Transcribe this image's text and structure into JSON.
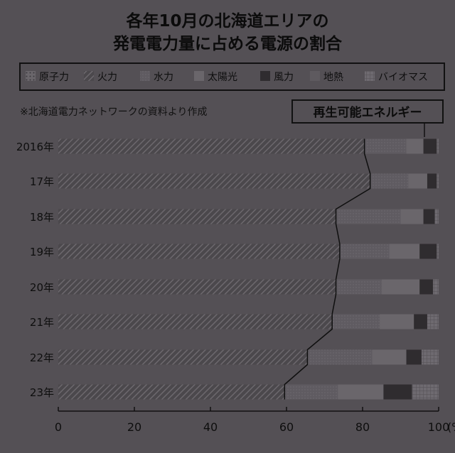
{
  "chart_data": {
    "type": "bar",
    "orientation": "horizontal",
    "stacked": true,
    "title_lines": [
      "各年10月の北海道エリアの",
      "発電電力量に占める電源の割合"
    ],
    "note": "※北海道電力ネットワークの資料より作成",
    "annotation": "再生可能エネルギー",
    "categories": [
      "2016年",
      "17年",
      "18年",
      "19年",
      "20年",
      "21年",
      "22年",
      "23年"
    ],
    "x_ticks": [
      "0",
      "20",
      "40",
      "60",
      "80",
      "100"
    ],
    "x_unit": "(%)",
    "xlim": [
      0,
      100
    ],
    "legend_position": "top",
    "series": [
      {
        "name": "原子力",
        "key": "nuclear",
        "color": "#666266",
        "values": [
          0,
          0,
          0,
          0,
          0,
          0,
          0,
          0
        ]
      },
      {
        "name": "火力",
        "key": "thermal",
        "color": "#4a474b",
        "values": [
          80.5,
          82,
          73,
          74,
          73,
          72,
          65.5,
          59.5
        ]
      },
      {
        "name": "水力",
        "key": "hydro",
        "color": "#605c62",
        "values": [
          11,
          10,
          17,
          13,
          12,
          12.5,
          17,
          14
        ]
      },
      {
        "name": "太陽光",
        "key": "solar",
        "color": "#6a666b",
        "values": [
          4.5,
          5,
          6,
          8,
          10,
          9,
          9,
          12
        ]
      },
      {
        "name": "風力",
        "key": "wind",
        "color": "#2f2c2f",
        "values": [
          3.5,
          2.5,
          3,
          4.5,
          3.5,
          3.5,
          4,
          7.5
        ]
      },
      {
        "name": "地熱",
        "key": "geothermal",
        "color": "#5e5a5f",
        "values": [
          0,
          0,
          0,
          0,
          0,
          0,
          0,
          0
        ]
      },
      {
        "name": "バイオマス",
        "key": "biomass",
        "color": "#6e6a70",
        "values": [
          0.5,
          0.5,
          1,
          0.5,
          1.5,
          3,
          4.5,
          7
        ]
      }
    ]
  }
}
